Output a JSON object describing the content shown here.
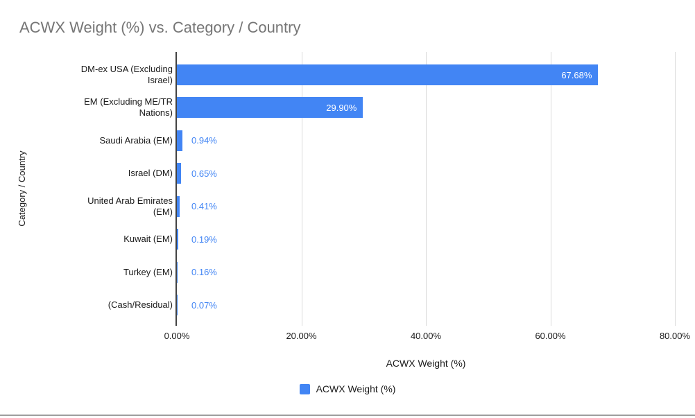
{
  "chart_data": {
    "type": "bar",
    "orientation": "horizontal",
    "title": "ACWX Weight (%) vs. Category / Country",
    "xlabel": "ACWX Weight (%)",
    "ylabel": "Category / Country",
    "legend_position": "bottom",
    "legend": [
      {
        "label": "ACWX Weight (%)",
        "color": "#4285F4"
      }
    ],
    "grid": true,
    "xlim": [
      0,
      80
    ],
    "x_ticks": [
      {
        "value": 0,
        "label": "0.00%"
      },
      {
        "value": 20,
        "label": "20.00%"
      },
      {
        "value": 40,
        "label": "40.00%"
      },
      {
        "value": 60,
        "label": "60.00%"
      },
      {
        "value": 80,
        "label": "80.00%"
      }
    ],
    "categories": [
      "DM-ex USA (Excluding Israel)",
      "EM (Excluding ME/TR Nations)",
      "Saudi Arabia (EM)",
      "Israel (DM)",
      "United Arab Emirates (EM)",
      "Kuwait (EM)",
      "Turkey (EM)",
      "(Cash/Residual)"
    ],
    "category_label_lines": [
      [
        "DM-ex USA (Excluding",
        "Israel)"
      ],
      [
        "EM (Excluding ME/TR",
        "Nations)"
      ],
      [
        "Saudi Arabia (EM)"
      ],
      [
        "Israel (DM)"
      ],
      [
        "United Arab Emirates",
        "(EM)"
      ],
      [
        "Kuwait (EM)"
      ],
      [
        "Turkey (EM)"
      ],
      [
        "(Cash/Residual)"
      ]
    ],
    "series": [
      {
        "name": "ACWX Weight (%)",
        "values": [
          67.68,
          29.9,
          0.94,
          0.65,
          0.41,
          0.19,
          0.16,
          0.07
        ],
        "value_labels": [
          "67.68%",
          "29.90%",
          "0.94%",
          "0.65%",
          "0.41%",
          "0.19%",
          "0.16%",
          "0.07%"
        ]
      }
    ],
    "bar_color": "#4285F4",
    "value_label_inside_color": "#ffffff",
    "value_label_outside_color": "#4285F4"
  },
  "colors": {
    "title_text": "#757575",
    "grid_line": "#dadada",
    "axis_line": "#424242",
    "body_text": "#1a1a1a",
    "bottom_rule": "#9e9e9e",
    "background": "#ffffff"
  }
}
